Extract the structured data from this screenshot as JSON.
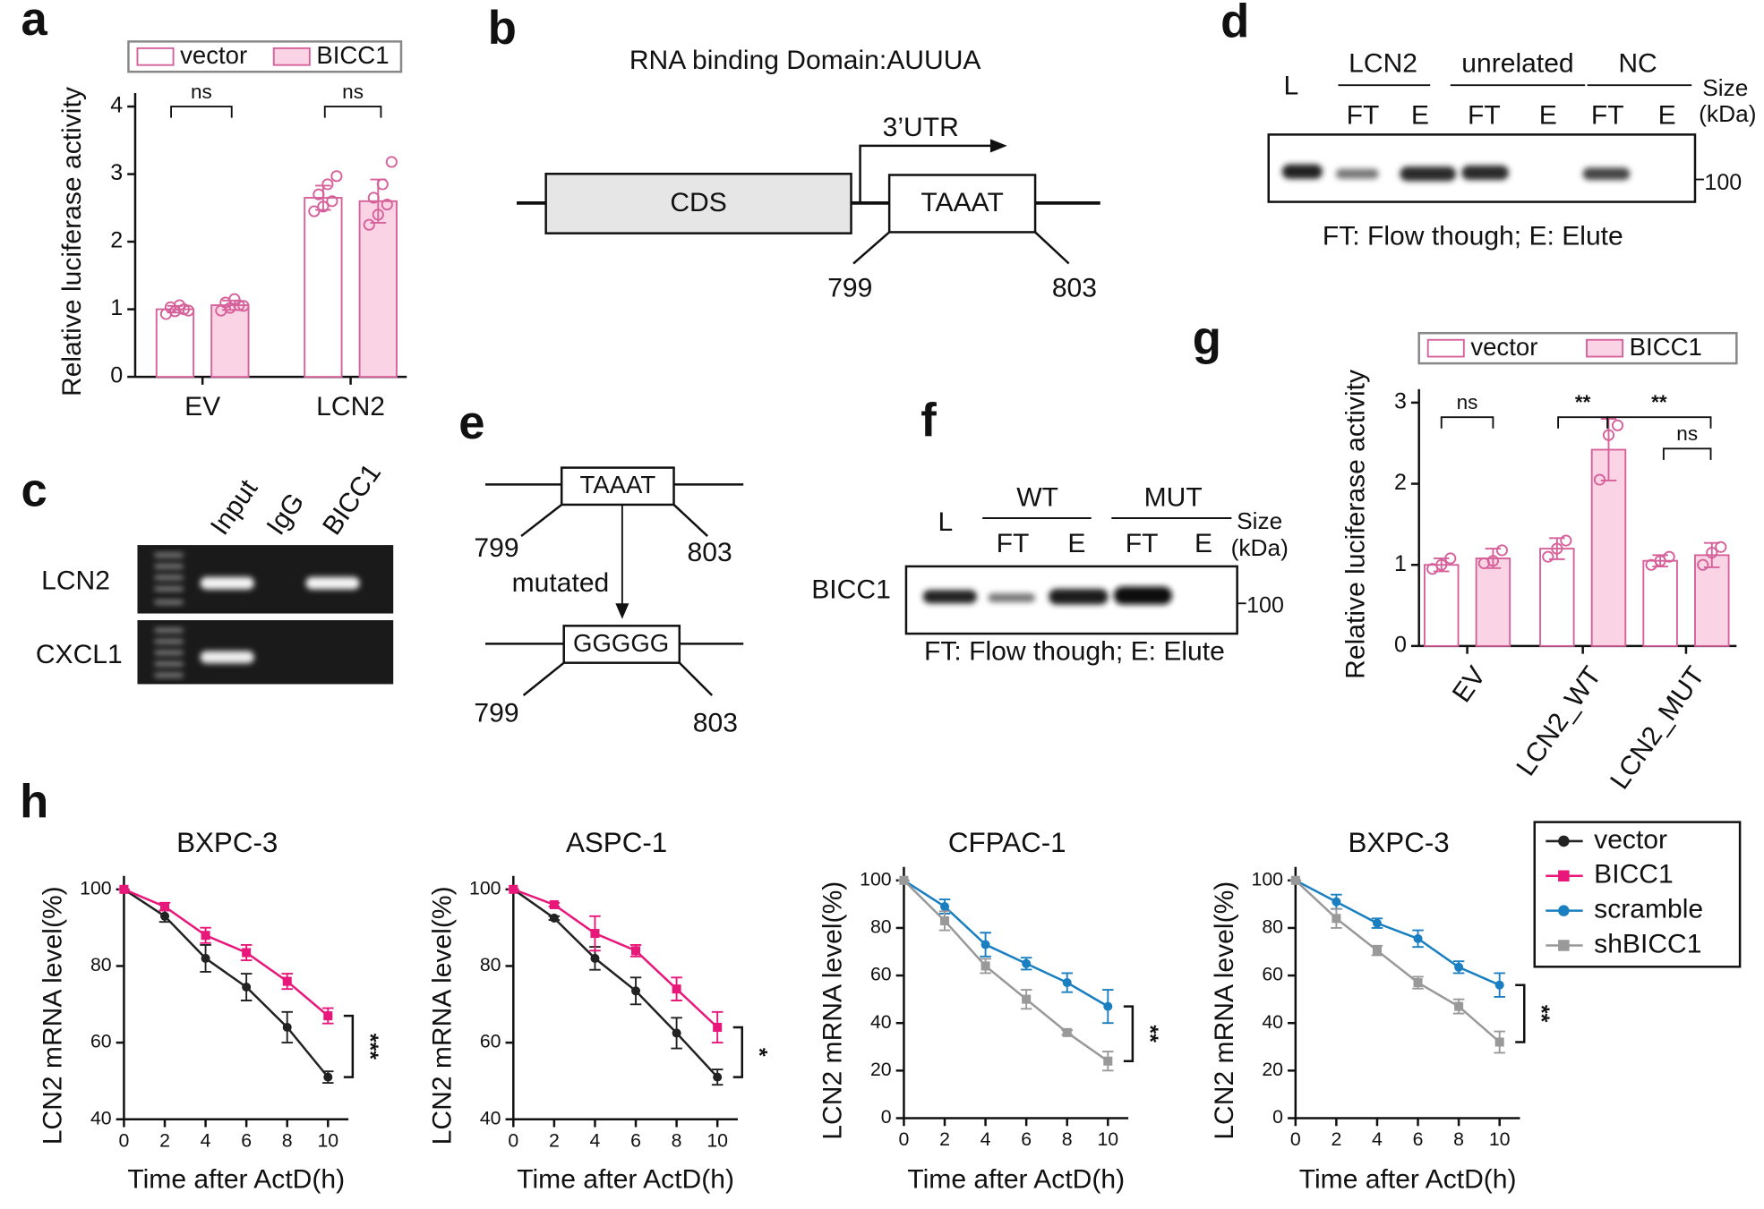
{
  "panel_labels": [
    "a",
    "b",
    "c",
    "d",
    "e",
    "f",
    "g",
    "h"
  ],
  "chart_data": [
    {
      "type": "bar",
      "ylabel": "Relative luciferase activity",
      "categories": [
        "EV",
        "LCN2"
      ],
      "ylim": [
        0,
        4
      ],
      "yticks": [
        0,
        1,
        2,
        3,
        4
      ],
      "annotations": [
        "ns",
        "ns"
      ],
      "series": [
        {
          "name": "vector",
          "color": "#d6609a",
          "fill": "#ffffff",
          "values": [
            1.0,
            2.65
          ],
          "errors": [
            0.05,
            0.18
          ],
          "points": [
            [
              0.93,
              0.97,
              1.0,
              1.03,
              1.06,
              0.98
            ],
            [
              2.45,
              2.52,
              2.6,
              2.7,
              2.85,
              2.97
            ]
          ]
        },
        {
          "name": "BICC1",
          "color": "#d6609a",
          "fill": "#fad4e4",
          "values": [
            1.06,
            2.6
          ],
          "errors": [
            0.07,
            0.32
          ],
          "points": [
            [
              0.98,
              1.02,
              1.06,
              1.1,
              1.15,
              1.05
            ],
            [
              2.25,
              2.4,
              2.55,
              2.65,
              2.85,
              3.18
            ]
          ]
        }
      ]
    },
    {
      "type": "bar",
      "ylabel": "Relative luciferase activity",
      "categories": [
        "EV",
        "LCN2_WT",
        "LCN2_MUT"
      ],
      "ylim": [
        0,
        3
      ],
      "yticks": [
        0,
        1,
        2,
        3
      ],
      "annotations": [
        "ns",
        "**",
        "**",
        "ns"
      ],
      "series": [
        {
          "name": "vector",
          "color": "#d6609a",
          "fill": "#ffffff",
          "values": [
            1.0,
            1.2,
            1.05
          ],
          "errors": [
            0.08,
            0.13,
            0.07
          ],
          "points": [
            [
              0.95,
              1.0,
              1.08
            ],
            [
              1.1,
              1.2,
              1.3
            ],
            [
              1.0,
              1.05,
              1.1
            ]
          ]
        },
        {
          "name": "BICC1",
          "color": "#d6609a",
          "fill": "#fad4e4",
          "values": [
            1.08,
            2.42,
            1.12
          ],
          "errors": [
            0.12,
            0.38,
            0.15
          ],
          "points": [
            [
              1.02,
              1.05,
              1.18
            ],
            [
              2.05,
              2.6,
              2.72
            ],
            [
              1.0,
              1.15,
              1.22
            ]
          ]
        }
      ]
    },
    {
      "type": "line",
      "title": "BXPC-3",
      "xlabel": "Time after ActD(h)",
      "ylabel": "LCN2 mRNA level(%)",
      "x": [
        0,
        2,
        4,
        6,
        8,
        10
      ],
      "xlim": [
        0,
        11
      ],
      "xticks": [
        0,
        2,
        4,
        6,
        8,
        10
      ],
      "ylim": [
        40,
        100
      ],
      "yticks": [
        40,
        60,
        80,
        100
      ],
      "significance": "***",
      "series": [
        {
          "name": "vector",
          "color": "#222222",
          "marker": "circle",
          "values": [
            100,
            93,
            82,
            74.5,
            64,
            51
          ],
          "errors": [
            0,
            1.5,
            3.5,
            3.5,
            4,
            1.5
          ]
        },
        {
          "name": "BICC1",
          "color": "#e8177a",
          "marker": "square",
          "values": [
            100,
            95.5,
            88,
            83.5,
            76,
            67
          ],
          "errors": [
            0,
            1,
            2,
            2,
            2,
            2
          ]
        }
      ]
    },
    {
      "type": "line",
      "title": "ASPC-1",
      "xlabel": "Time after ActD(h)",
      "ylabel": "LCN2 mRNA level(%)",
      "x": [
        0,
        2,
        4,
        6,
        8,
        10
      ],
      "xlim": [
        0,
        11
      ],
      "xticks": [
        0,
        2,
        4,
        6,
        8,
        10
      ],
      "ylim": [
        40,
        100
      ],
      "yticks": [
        40,
        60,
        80,
        100
      ],
      "significance": "*",
      "series": [
        {
          "name": "vector",
          "color": "#222222",
          "marker": "circle",
          "values": [
            100,
            92.5,
            82,
            73.5,
            62.5,
            51
          ],
          "errors": [
            0,
            0.5,
            3,
            3.5,
            4,
            2
          ]
        },
        {
          "name": "BICC1",
          "color": "#e8177a",
          "marker": "square",
          "values": [
            100,
            96,
            88.5,
            84,
            74,
            64
          ],
          "errors": [
            0,
            0.5,
            4.5,
            1.5,
            3,
            4
          ]
        }
      ]
    },
    {
      "type": "line",
      "title": "CFPAC-1",
      "xlabel": "Time after ActD(h)",
      "ylabel": "LCN2 mRNA level(%)",
      "x": [
        0,
        2,
        4,
        6,
        8,
        10
      ],
      "xlim": [
        0,
        11
      ],
      "xticks": [
        0,
        2,
        4,
        6,
        8,
        10
      ],
      "ylim": [
        0,
        100
      ],
      "yticks": [
        0,
        20,
        40,
        60,
        80,
        100
      ],
      "significance": "**",
      "series": [
        {
          "name": "scramble",
          "color": "#1a7fc1",
          "marker": "circle",
          "values": [
            100,
            89,
            73,
            65,
            57,
            47
          ],
          "errors": [
            0,
            3,
            5,
            2.5,
            4,
            7
          ]
        },
        {
          "name": "shBICC1",
          "color": "#999999",
          "marker": "square",
          "values": [
            100,
            83,
            64,
            50,
            36,
            24
          ],
          "errors": [
            0,
            4,
            3,
            4,
            1,
            4
          ]
        }
      ]
    },
    {
      "type": "line",
      "title": "BXPC-3",
      "xlabel": "Time after ActD(h)",
      "ylabel": "LCN2 mRNA level(%)",
      "x": [
        0,
        2,
        4,
        6,
        8,
        10
      ],
      "xlim": [
        0,
        11
      ],
      "xticks": [
        0,
        2,
        4,
        6,
        8,
        10
      ],
      "ylim": [
        0,
        100
      ],
      "yticks": [
        0,
        20,
        40,
        60,
        80,
        100
      ],
      "significance": "**",
      "series": [
        {
          "name": "scramble",
          "color": "#1a7fc1",
          "marker": "circle",
          "values": [
            100,
            91,
            82,
            75.5,
            63.5,
            56
          ],
          "errors": [
            0,
            3,
            2,
            3.5,
            2.5,
            5
          ]
        },
        {
          "name": "shBICC1",
          "color": "#999999",
          "marker": "square",
          "values": [
            100,
            84,
            70.5,
            57,
            47,
            32
          ],
          "errors": [
            0,
            4,
            2,
            2.5,
            3,
            4.5
          ]
        }
      ]
    }
  ],
  "diagram_b": {
    "title": "RNA binding Domain:AUUUA",
    "cds": "CDS",
    "utr": "3’UTR",
    "motif": "TAAAT",
    "start": "799",
    "end": "803"
  },
  "blot_c": {
    "columns": [
      "Input",
      "IgG",
      "BICC1"
    ],
    "rows": [
      "LCN2",
      "CXCL1"
    ]
  },
  "blot_d": {
    "ladder": "L",
    "groups": [
      "LCN2",
      "unrelated",
      "NC"
    ],
    "lanes": [
      "FT",
      "E",
      "FT",
      "E",
      "FT",
      "E"
    ],
    "size": "Size",
    "unit": "(kDa)",
    "marker": "100",
    "caption": "FT: Flow though; E: Elute"
  },
  "diagram_e": {
    "motif": "TAAAT",
    "start": "799",
    "end": "803",
    "arrow": "mutated",
    "mutant": "GGGGG",
    "mutant_start": "799",
    "mutant_end": "803"
  },
  "blot_f": {
    "ladder": "L",
    "groups": [
      "WT",
      "MUT"
    ],
    "lanes": [
      "FT",
      "E",
      "FT",
      "E"
    ],
    "protein": "BICC1",
    "size": "Size",
    "unit": "(kDa)",
    "marker": "100",
    "caption": "FT: Flow though; E: Elute"
  }
}
